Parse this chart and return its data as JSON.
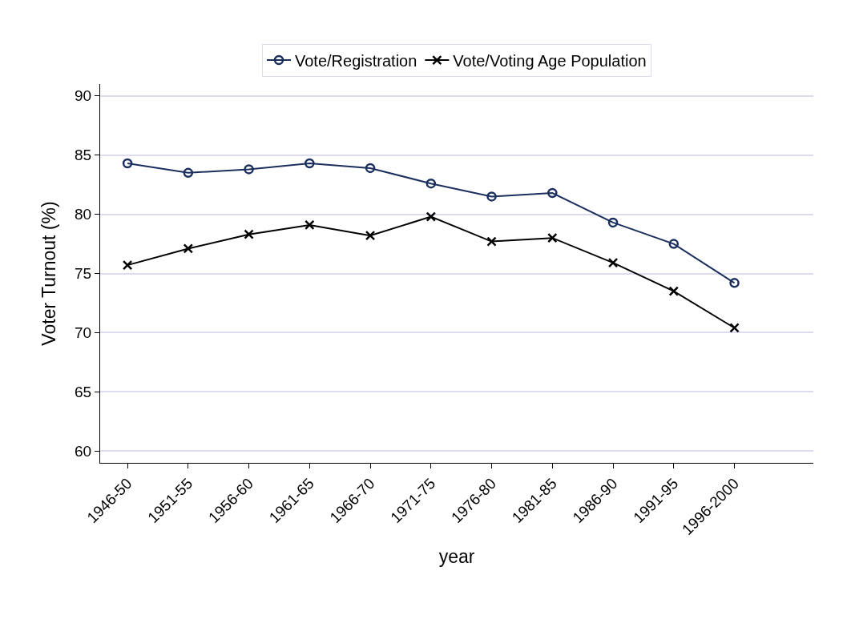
{
  "chart_data": {
    "type": "line",
    "xlabel": "year",
    "ylabel": "Voter Turnout (%)",
    "categories": [
      "1946-50",
      "1951-55",
      "1956-60",
      "1961-65",
      "1966-70",
      "1971-75",
      "1976-80",
      "1981-85",
      "1986-90",
      "1991-95",
      "1996-2000"
    ],
    "series": [
      {
        "name": "Vote/Registration",
        "color": "#1a2f5e",
        "marker": "circle",
        "values": [
          84.3,
          83.5,
          83.8,
          84.3,
          83.9,
          82.6,
          81.5,
          81.8,
          79.3,
          77.5,
          74.2
        ]
      },
      {
        "name": "Vote/Voting Age Population",
        "color": "#000000",
        "marker": "cross",
        "values": [
          75.7,
          77.1,
          78.3,
          79.1,
          78.2,
          79.8,
          77.7,
          78.0,
          75.9,
          73.5,
          70.4
        ]
      }
    ],
    "ylim": [
      59,
      91
    ],
    "yticks": [
      60,
      65,
      70,
      75,
      80,
      85,
      90
    ],
    "grid": "y",
    "legend": "top",
    "line_style": "solid"
  }
}
